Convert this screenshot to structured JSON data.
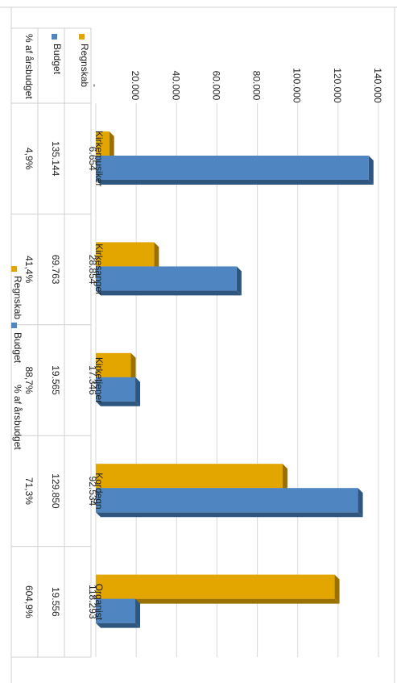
{
  "chart_data": {
    "type": "bar",
    "orientation": "rotated-90-clockwise",
    "title": "",
    "categories": [
      "Kirkemusiker",
      "Kirkesanger",
      "Kirketjener",
      "Kordegn",
      "Organist"
    ],
    "series": [
      {
        "name": "Regnskab",
        "values": [
          6654,
          28854,
          17346,
          92534,
          118293
        ],
        "labels": [
          "6.654",
          "28.854",
          "17.346",
          "92.534",
          "118.293"
        ],
        "color": "#E3A600",
        "shade": "#9A7100"
      },
      {
        "name": "Budget",
        "values": [
          135144,
          69763,
          19565,
          129850,
          19556
        ],
        "labels": [
          "135.144",
          "69.763",
          "19.565",
          "129.850",
          "19.556"
        ],
        "color": "#4F86C1",
        "shade": "#2F567F"
      }
    ],
    "table_row": {
      "name": "% af årsbudget",
      "values": [
        "4,9%",
        "41,4%",
        "88,7%",
        "71,3%",
        "604,9%"
      ]
    },
    "ylim": [
      0,
      140000
    ],
    "ticks": [
      {
        "value": 0,
        "label": "-"
      },
      {
        "value": 20000,
        "label": "20.000"
      },
      {
        "value": 40000,
        "label": "40.000"
      },
      {
        "value": 60000,
        "label": "60.000"
      },
      {
        "value": 80000,
        "label": "80.000"
      },
      {
        "value": 100000,
        "label": "100.000"
      },
      {
        "value": 120000,
        "label": "120.000"
      },
      {
        "value": 140000,
        "label": "140.000"
      }
    ],
    "grid": true,
    "legend": {
      "position": "bottom",
      "items": [
        "Regnskab",
        "Budget",
        "% af årsbudget"
      ]
    }
  }
}
